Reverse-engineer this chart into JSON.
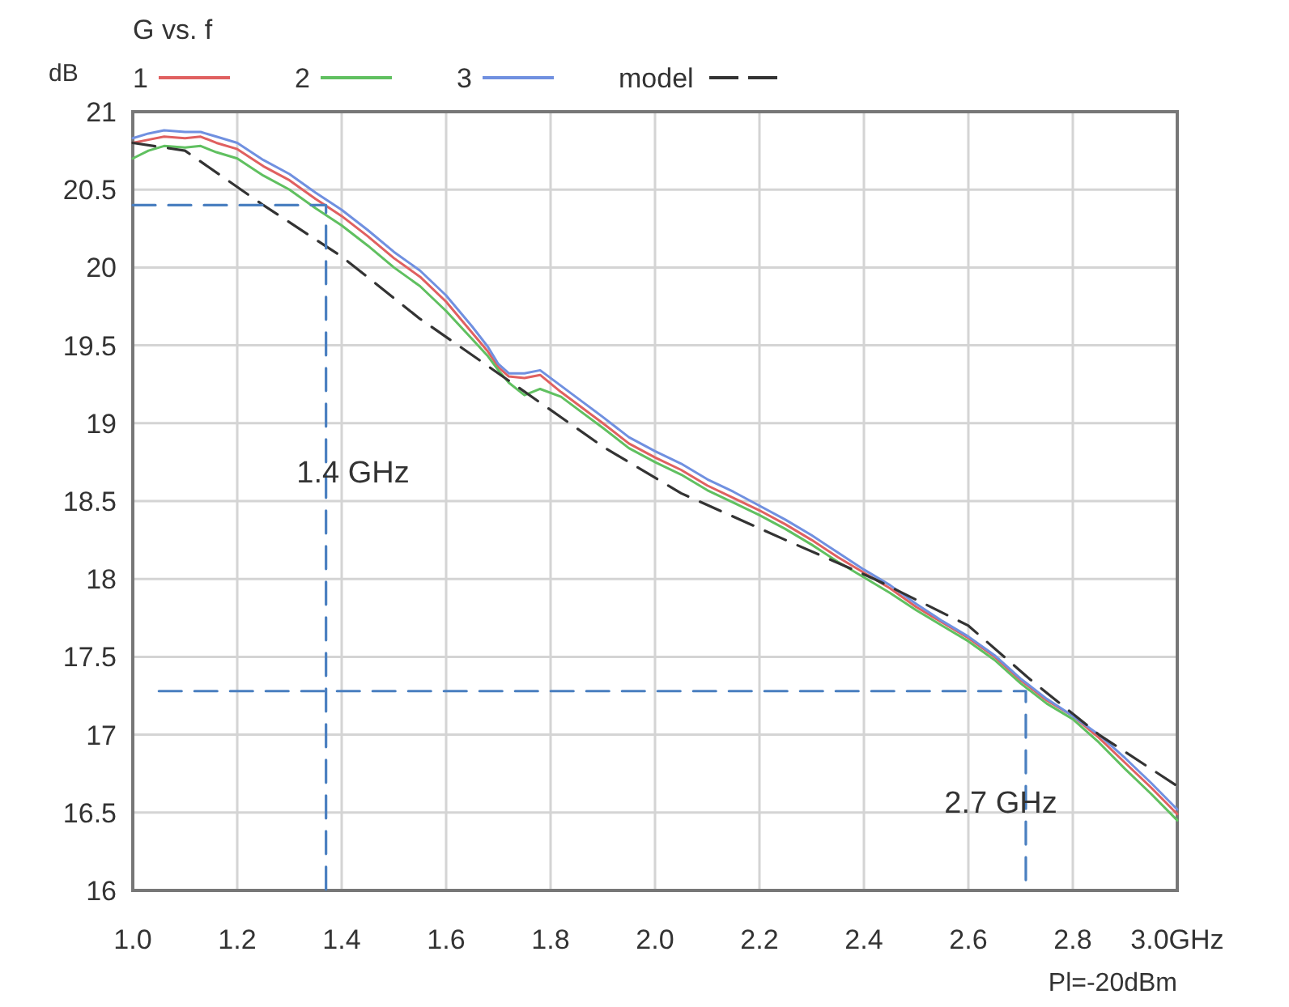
{
  "chart_data": {
    "type": "line",
    "title": "G vs. f",
    "ylabel": "dB",
    "xlim": [
      1.0,
      3.0
    ],
    "ylim": [
      16,
      21
    ],
    "xticks": [
      {
        "value": 1.0,
        "label": "1.0"
      },
      1.2,
      1.4,
      1.6,
      1.8,
      {
        "value": 2.0,
        "label": "2.0"
      },
      2.2,
      2.4,
      2.6,
      2.8,
      {
        "value": 3.0,
        "label": "3.0GHz"
      }
    ],
    "yticks": [
      16,
      16.5,
      17,
      17.5,
      18,
      18.5,
      19,
      19.5,
      20,
      20.5,
      21
    ],
    "grid": true,
    "legend": "top",
    "line_style": "solid",
    "series": [
      {
        "name": "1",
        "color": "#e06060",
        "x": [
          1.0,
          1.03,
          1.06,
          1.1,
          1.13,
          1.16,
          1.2,
          1.25,
          1.3,
          1.35,
          1.4,
          1.45,
          1.5,
          1.55,
          1.6,
          1.65,
          1.68,
          1.7,
          1.72,
          1.75,
          1.78,
          1.82,
          1.86,
          1.9,
          1.95,
          2.0,
          2.05,
          2.1,
          2.15,
          2.2,
          2.25,
          2.3,
          2.35,
          2.4,
          2.45,
          2.5,
          2.55,
          2.6,
          2.65,
          2.7,
          2.75,
          2.8,
          2.85,
          2.9,
          2.95,
          3.0
        ],
        "values": [
          20.8,
          20.82,
          20.84,
          20.83,
          20.84,
          20.8,
          20.76,
          20.65,
          20.56,
          20.44,
          20.33,
          20.2,
          20.06,
          19.94,
          19.78,
          19.58,
          19.46,
          19.36,
          19.3,
          19.29,
          19.31,
          19.2,
          19.1,
          19.0,
          18.87,
          18.78,
          18.7,
          18.6,
          18.52,
          18.44,
          18.35,
          18.25,
          18.14,
          18.04,
          17.94,
          17.82,
          17.72,
          17.62,
          17.5,
          17.35,
          17.22,
          17.12,
          16.98,
          16.82,
          16.66,
          16.49
        ]
      },
      {
        "name": "2",
        "color": "#60c060",
        "x": [
          1.0,
          1.03,
          1.06,
          1.1,
          1.13,
          1.16,
          1.2,
          1.25,
          1.3,
          1.35,
          1.4,
          1.45,
          1.5,
          1.55,
          1.6,
          1.65,
          1.68,
          1.7,
          1.72,
          1.75,
          1.78,
          1.82,
          1.86,
          1.9,
          1.95,
          2.0,
          2.05,
          2.1,
          2.15,
          2.2,
          2.25,
          2.3,
          2.35,
          2.4,
          2.45,
          2.5,
          2.55,
          2.6,
          2.65,
          2.7,
          2.75,
          2.8,
          2.85,
          2.9,
          2.95,
          3.0
        ],
        "values": [
          20.7,
          20.75,
          20.78,
          20.77,
          20.78,
          20.74,
          20.7,
          20.59,
          20.5,
          20.38,
          20.27,
          20.14,
          20.0,
          19.88,
          19.72,
          19.54,
          19.43,
          19.34,
          19.26,
          19.18,
          19.22,
          19.17,
          19.07,
          18.97,
          18.84,
          18.75,
          18.67,
          18.57,
          18.49,
          18.41,
          18.32,
          18.22,
          18.11,
          18.01,
          17.91,
          17.8,
          17.7,
          17.6,
          17.48,
          17.33,
          17.2,
          17.1,
          16.95,
          16.78,
          16.62,
          16.45
        ]
      },
      {
        "name": "3",
        "color": "#7090e0",
        "x": [
          1.0,
          1.03,
          1.06,
          1.1,
          1.13,
          1.16,
          1.2,
          1.25,
          1.3,
          1.35,
          1.4,
          1.45,
          1.5,
          1.55,
          1.6,
          1.65,
          1.68,
          1.7,
          1.72,
          1.75,
          1.78,
          1.82,
          1.86,
          1.9,
          1.95,
          2.0,
          2.05,
          2.1,
          2.15,
          2.2,
          2.25,
          2.3,
          2.35,
          2.4,
          2.45,
          2.5,
          2.55,
          2.6,
          2.65,
          2.7,
          2.75,
          2.8,
          2.85,
          2.9,
          2.95,
          3.0
        ],
        "values": [
          20.83,
          20.86,
          20.88,
          20.87,
          20.87,
          20.84,
          20.8,
          20.69,
          20.6,
          20.48,
          20.37,
          20.24,
          20.1,
          19.98,
          19.82,
          19.62,
          19.49,
          19.38,
          19.32,
          19.32,
          19.34,
          19.24,
          19.14,
          19.04,
          18.91,
          18.82,
          18.74,
          18.64,
          18.56,
          18.47,
          18.38,
          18.28,
          18.17,
          18.06,
          17.96,
          17.84,
          17.73,
          17.63,
          17.51,
          17.36,
          17.23,
          17.12,
          17.0,
          16.85,
          16.69,
          16.52
        ]
      },
      {
        "name": "model",
        "color": "#333333",
        "line_style": "dashed",
        "x": [
          1.0,
          1.1,
          1.25,
          1.4,
          1.55,
          1.73,
          1.9,
          2.05,
          2.25,
          2.42,
          2.6,
          2.72,
          2.85,
          3.0
        ],
        "values": [
          20.8,
          20.75,
          20.4,
          20.07,
          19.67,
          19.25,
          18.85,
          18.55,
          18.25,
          18.0,
          17.7,
          17.35,
          17.0,
          16.67
        ]
      },
      {
        "color": "#4a7fc0",
        "line_style": "dashed",
        "x": [
          1.0,
          1.37,
          1.37
        ],
        "values": [
          20.4,
          20.4,
          16
        ]
      },
      {
        "color": "#4a7fc0",
        "line_style": "dashed",
        "x": [
          1.05,
          2.71,
          2.71
        ],
        "values": [
          17.28,
          17.28,
          16
        ]
      }
    ],
    "annotations": [
      "1.4 GHz",
      "2.7 GHz",
      "Pl=-20dBm"
    ]
  }
}
